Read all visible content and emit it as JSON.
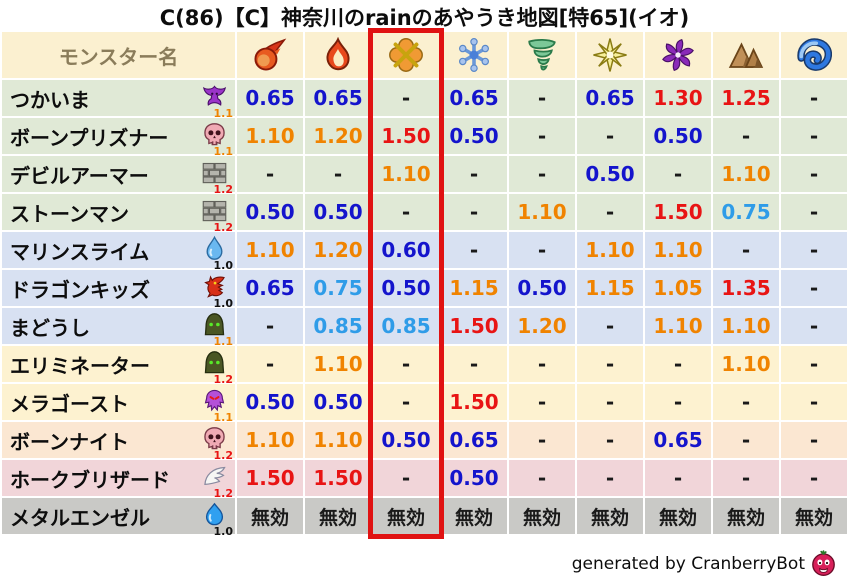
{
  "title": "C(86)【C】神奈川のrainのあやうき地図[特65](イオ)",
  "chart_data": {
    "type": "table",
    "title": "C(86)【C】神奈川のrainのあやうき地図[特65](イオ)",
    "columns": {
      "name_header": "モンスター名",
      "element_icons": [
        "fireball-icon",
        "flame-icon",
        "explosion-icon",
        "snowflake-icon",
        "tornado-icon",
        "light-star-icon",
        "dark-pinwheel-icon",
        "rock-mountain-icon",
        "wave-icon"
      ]
    },
    "highlight_column": {
      "index": 2,
      "color": "#e01212"
    },
    "immune_label": "無効",
    "rows": [
      {
        "name": "つかいま",
        "icon": "imp-icon",
        "version": "1.1",
        "tier": "green",
        "values": [
          "0.65",
          "0.65",
          "-",
          "0.65",
          "-",
          "0.65",
          "1.30",
          "1.25",
          "-"
        ]
      },
      {
        "name": "ボーンプリズナー",
        "icon": "skull-icon",
        "version": "1.1",
        "tier": "green",
        "values": [
          "1.10",
          "1.20",
          "1.50",
          "0.50",
          "-",
          "-",
          "0.50",
          "-",
          "-"
        ]
      },
      {
        "name": "デビルアーマー",
        "icon": "bricks-icon",
        "version": "1.2",
        "tier": "green",
        "values": [
          "-",
          "-",
          "1.10",
          "-",
          "-",
          "0.50",
          "-",
          "1.10",
          "-"
        ]
      },
      {
        "name": "ストーンマン",
        "icon": "bricks-icon",
        "version": "1.2",
        "tier": "green",
        "values": [
          "0.50",
          "0.50",
          "-",
          "-",
          "1.10",
          "-",
          "1.50",
          "0.75",
          "-"
        ]
      },
      {
        "name": "マリンスライム",
        "icon": "droplet-icon",
        "version": "1.0",
        "tier": "blue",
        "values": [
          "1.10",
          "1.20",
          "0.60",
          "-",
          "-",
          "1.10",
          "1.10",
          "-",
          "-"
        ]
      },
      {
        "name": "ドラゴンキッズ",
        "icon": "dragon-icon",
        "version": "1.0",
        "tier": "blue",
        "values": [
          "0.65",
          "0.75",
          "0.50",
          "1.15",
          "0.50",
          "1.15",
          "1.05",
          "1.35",
          "-"
        ]
      },
      {
        "name": "まどうし",
        "icon": "hood-icon",
        "version": "1.1",
        "tier": "blue",
        "values": [
          "-",
          "0.85",
          "0.85",
          "1.50",
          "1.20",
          "-",
          "1.10",
          "1.10",
          "-"
        ]
      },
      {
        "name": "エリミネーター",
        "icon": "hood-icon",
        "version": "1.2",
        "tier": "cream",
        "values": [
          "-",
          "1.10",
          "-",
          "-",
          "-",
          "-",
          "-",
          "1.10",
          "-"
        ]
      },
      {
        "name": "メラゴースト",
        "icon": "ghost-icon",
        "version": "1.1",
        "tier": "cream",
        "values": [
          "0.50",
          "0.50",
          "-",
          "1.50",
          "-",
          "-",
          "-",
          "-",
          "-"
        ]
      },
      {
        "name": "ボーンナイト",
        "icon": "skull-icon",
        "version": "1.2",
        "tier": "peach",
        "values": [
          "1.10",
          "1.10",
          "0.50",
          "0.65",
          "-",
          "-",
          "0.65",
          "-",
          "-"
        ]
      },
      {
        "name": "ホークブリザード",
        "icon": "wing-icon",
        "version": "1.2",
        "tier": "pink",
        "values": [
          "1.50",
          "1.50",
          "-",
          "0.50",
          "-",
          "-",
          "-",
          "-",
          "-"
        ]
      },
      {
        "name": "メタルエンゼル",
        "icon": "slime-icon",
        "version": "1.0",
        "tier": "gray",
        "values": [
          "無効",
          "無効",
          "無効",
          "無効",
          "無効",
          "無効",
          "無効",
          "無効",
          "無効"
        ]
      }
    ]
  },
  "palette": {
    "header_bg": "#fbf0d0",
    "header_text": "#8a7c5a",
    "row_tiers": {
      "green": "#e0e9d6",
      "blue": "#d8e1f2",
      "cream": "#fdf2d0",
      "peach": "#fbe7d2",
      "pink": "#f1d5d9",
      "gray": "#c9c9c6"
    },
    "value_colors": {
      "low": "#1414cc",
      "mid_low": "#2f9ce8",
      "mid_high": "#f08300",
      "high": "#e81414",
      "neutral": "#1a1a1a"
    },
    "version_colors": {
      "1.0": "#111111",
      "1.1": "#f08300",
      "1.2": "#e81414"
    }
  },
  "footer": {
    "credit": "generated by CranberryBot",
    "icon": "cranberry-face-icon"
  }
}
